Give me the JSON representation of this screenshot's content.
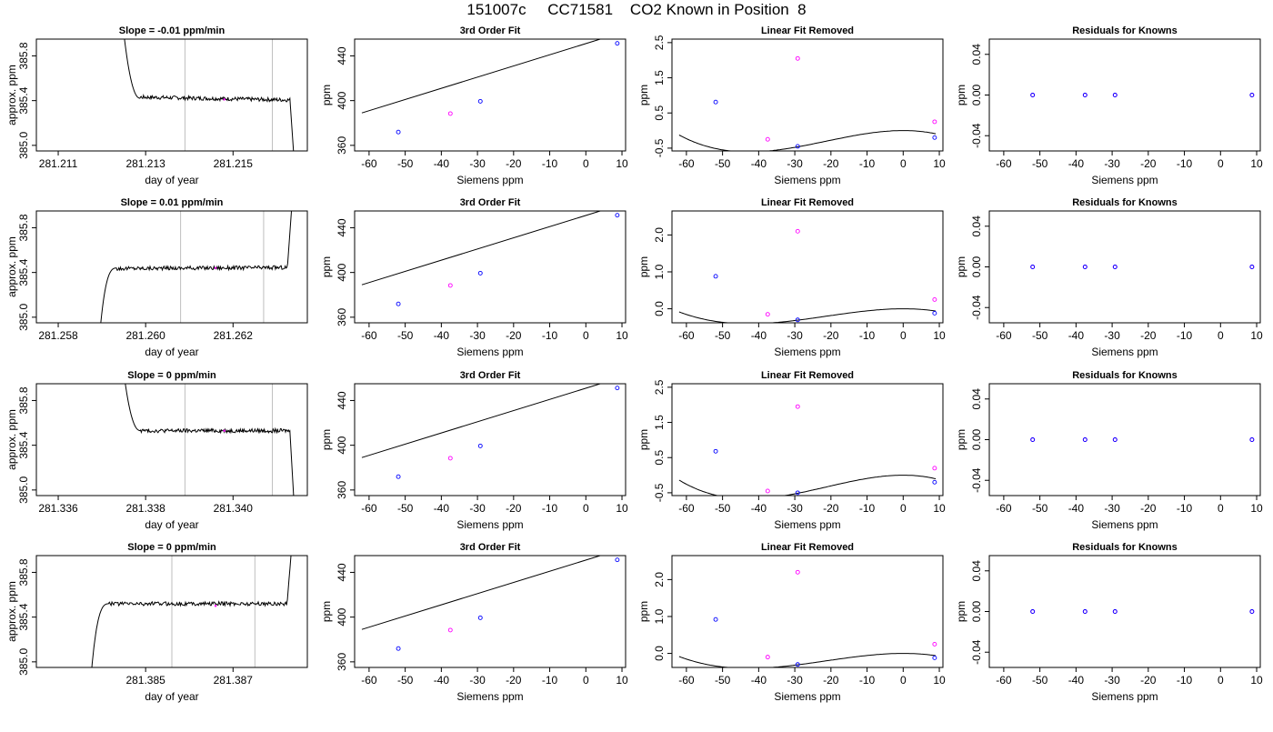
{
  "page": {
    "title": "151007c     CC71581    CO2 Known in Position  8"
  },
  "colors": {
    "axis": "#000000",
    "line": "#000000",
    "known_point": "#0000ff",
    "unknown_point": "#ff00ff",
    "vline": "#bebebe"
  },
  "chart_data": [
    {
      "type": "line",
      "row": 1,
      "col": 1,
      "title": "Slope =  -0.01  ppm/min",
      "xlabel": "day of year",
      "ylabel": "approx. ppm",
      "xlim": [
        281.2105,
        281.2167
      ],
      "ylim": [
        384.95,
        385.95
      ],
      "xticks": [
        281.211,
        281.213,
        281.215
      ],
      "xtick_labels": [
        "281.211",
        "281.213",
        "281.215"
      ],
      "yticks": [
        385.0,
        385.4,
        385.8
      ],
      "ytick_labels": [
        "385.0",
        "385.4",
        "385.8"
      ],
      "vlines": [
        281.2139,
        281.2159
      ],
      "trace": {
        "start": 281.2124,
        "end": 281.2164,
        "start_value": 386.4,
        "plateau": 385.42,
        "end_value": 384.85,
        "drift": -0.03,
        "profile": "fall-flat-drop"
      },
      "unknown_points": [
        {
          "x": 281.2148,
          "y": 385.41
        }
      ]
    },
    {
      "type": "scatter",
      "row": 1,
      "col": 2,
      "title": "3rd Order Fit",
      "xlabel": "Siemens ppm",
      "ylabel": "ppm",
      "xlim": [
        -64,
        11
      ],
      "ylim": [
        355,
        455
      ],
      "xticks": [
        -60,
        -50,
        -40,
        -30,
        -20,
        -10,
        0,
        10
      ],
      "xtick_labels": [
        "-60",
        "-50",
        "-40",
        "-30",
        "-20",
        "-10",
        "0",
        "10"
      ],
      "yticks": [
        360,
        400,
        440
      ],
      "ytick_labels": [
        "360",
        "400",
        "440"
      ],
      "curve": {
        "kind": "line",
        "slope": 1.0,
        "intercept": 451,
        "from": -62,
        "to": 9
      },
      "known_points": [
        {
          "x": -51.9,
          "y": 371.9
        },
        {
          "x": -29.2,
          "y": 399.4
        },
        {
          "x": 8.7,
          "y": 451.2
        }
      ],
      "unknown_points": [
        {
          "x": -37.5,
          "y": 388.4
        }
      ]
    },
    {
      "type": "scatter",
      "row": 1,
      "col": 3,
      "title": "Linear Fit Removed",
      "xlabel": "Siemens ppm",
      "ylabel": "ppm",
      "xlim": [
        -64,
        11
      ],
      "ylim": [
        -0.58,
        2.6
      ],
      "xticks": [
        -60,
        -50,
        -40,
        -30,
        -20,
        -10,
        0,
        10
      ],
      "xtick_labels": [
        "-60",
        "-50",
        "-40",
        "-30",
        "-20",
        "-10",
        "0",
        "10"
      ],
      "yticks": [
        -0.5,
        0.5,
        1.5,
        2.5
      ],
      "ytick_labels": [
        "-0.5",
        "0.5",
        "1.5",
        "2.5"
      ],
      "curve": {
        "kind": "cubic",
        "x_min": -28.5,
        "y_min": -0.45,
        "x_max": 0,
        "y_max": 0.0,
        "from": -62,
        "to": 9
      },
      "known_points": [
        {
          "x": -51.9,
          "y": 0.81
        },
        {
          "x": -29.2,
          "y": -0.45
        },
        {
          "x": 8.7,
          "y": -0.2
        }
      ],
      "unknown_points": [
        {
          "x": -37.5,
          "y": -0.25
        },
        {
          "x": -29.2,
          "y": 2.05
        },
        {
          "x": 8.7,
          "y": 0.25
        }
      ]
    },
    {
      "type": "scatter",
      "row": 1,
      "col": 4,
      "title": "Residuals for Knowns",
      "xlabel": "Siemens ppm",
      "ylabel": "ppm",
      "xlim": [
        -64,
        11
      ],
      "ylim": [
        -0.055,
        0.055
      ],
      "xticks": [
        -60,
        -50,
        -40,
        -30,
        -20,
        -10,
        0,
        10
      ],
      "xtick_labels": [
        "-60",
        "-50",
        "-40",
        "-30",
        "-20",
        "-10",
        "0",
        "10"
      ],
      "yticks": [
        -0.04,
        0.0,
        0.04
      ],
      "ytick_labels": [
        "-0.04",
        "0.00",
        "0.04"
      ],
      "known_points": [
        {
          "x": -52,
          "y": 0
        },
        {
          "x": -37.5,
          "y": 0
        },
        {
          "x": -29.2,
          "y": 0
        },
        {
          "x": 8.7,
          "y": 0
        }
      ],
      "unknown_points": [
        {
          "x": -52,
          "y": 0
        },
        {
          "x": -37.5,
          "y": 0
        },
        {
          "x": -29.2,
          "y": 0
        },
        {
          "x": 8.7,
          "y": 0
        }
      ]
    },
    {
      "type": "line",
      "row": 2,
      "col": 1,
      "title": "Slope =  0.01  ppm/min",
      "xlabel": "day of year",
      "ylabel": "approx. ppm",
      "xlim": [
        281.2575,
        281.2637
      ],
      "ylim": [
        384.95,
        385.95
      ],
      "xticks": [
        281.258,
        281.26,
        281.262
      ],
      "xtick_labels": [
        "281.258",
        "281.260",
        "281.262"
      ],
      "yticks": [
        385.0,
        385.4,
        385.8
      ],
      "ytick_labels": [
        "385.0",
        "385.4",
        "385.8"
      ],
      "vlines": [
        281.2608,
        281.2627
      ],
      "trace": {
        "start": 281.2589,
        "end": 281.2634,
        "start_value": 384.6,
        "plateau": 385.44,
        "end_value": 386.3,
        "drift": 0.01,
        "profile": "rise-flat-rise"
      },
      "unknown_points": [
        {
          "x": 281.2616,
          "y": 385.44
        }
      ]
    },
    {
      "type": "scatter",
      "row": 2,
      "col": 2,
      "title": "3rd Order Fit",
      "xlabel": "Siemens ppm",
      "ylabel": "ppm",
      "xlim": [
        -64,
        11
      ],
      "ylim": [
        355,
        455
      ],
      "xticks": [
        -60,
        -50,
        -40,
        -30,
        -20,
        -10,
        0,
        10
      ],
      "xtick_labels": [
        "-60",
        "-50",
        "-40",
        "-30",
        "-20",
        "-10",
        "0",
        "10"
      ],
      "yticks": [
        360,
        400,
        440
      ],
      "ytick_labels": [
        "360",
        "400",
        "440"
      ],
      "curve": {
        "kind": "line",
        "slope": 1.0,
        "intercept": 451,
        "from": -62,
        "to": 9
      },
      "known_points": [
        {
          "x": -51.9,
          "y": 371.9
        },
        {
          "x": -29.2,
          "y": 399.4
        },
        {
          "x": 8.7,
          "y": 451.2
        }
      ],
      "unknown_points": [
        {
          "x": -37.5,
          "y": 388.4
        }
      ]
    },
    {
      "type": "scatter",
      "row": 2,
      "col": 3,
      "title": "Linear Fit Removed",
      "xlabel": "Siemens ppm",
      "ylabel": "ppm",
      "xlim": [
        -64,
        11
      ],
      "ylim": [
        -0.38,
        2.65
      ],
      "xticks": [
        -60,
        -50,
        -40,
        -30,
        -20,
        -10,
        0,
        10
      ],
      "xtick_labels": [
        "-60",
        "-50",
        "-40",
        "-30",
        "-20",
        "-10",
        "0",
        "10"
      ],
      "yticks": [
        0.0,
        1.0,
        2.0
      ],
      "ytick_labels": [
        "0.0",
        "1.0",
        "2.0"
      ],
      "curve": {
        "kind": "cubic",
        "x_min": -28.5,
        "y_min": -0.3,
        "x_max": 0,
        "y_max": 0.0,
        "from": -62,
        "to": 9
      },
      "known_points": [
        {
          "x": -51.9,
          "y": 0.88
        },
        {
          "x": -29.2,
          "y": -0.3
        },
        {
          "x": 8.7,
          "y": -0.12
        }
      ],
      "unknown_points": [
        {
          "x": -37.5,
          "y": -0.15
        },
        {
          "x": -29.2,
          "y": 2.1
        },
        {
          "x": 8.7,
          "y": 0.25
        }
      ]
    },
    {
      "type": "scatter",
      "row": 2,
      "col": 4,
      "title": "Residuals for Knowns",
      "xlabel": "Siemens ppm",
      "ylabel": "ppm",
      "xlim": [
        -64,
        11
      ],
      "ylim": [
        -0.055,
        0.055
      ],
      "xticks": [
        -60,
        -50,
        -40,
        -30,
        -20,
        -10,
        0,
        10
      ],
      "xtick_labels": [
        "-60",
        "-50",
        "-40",
        "-30",
        "-20",
        "-10",
        "0",
        "10"
      ],
      "yticks": [
        -0.04,
        0.0,
        0.04
      ],
      "ytick_labels": [
        "-0.04",
        "0.00",
        "0.04"
      ],
      "known_points": [
        {
          "x": -52,
          "y": 0
        },
        {
          "x": -37.5,
          "y": 0
        },
        {
          "x": -29.2,
          "y": 0
        },
        {
          "x": 8.7,
          "y": 0
        }
      ],
      "unknown_points": [
        {
          "x": -52,
          "y": 0
        },
        {
          "x": -37.5,
          "y": 0
        },
        {
          "x": -29.2,
          "y": 0
        },
        {
          "x": 8.7,
          "y": 0
        }
      ]
    },
    {
      "type": "line",
      "row": 3,
      "col": 1,
      "title": "Slope =  0  ppm/min",
      "xlabel": "day of year",
      "ylabel": "approx. ppm",
      "xlim": [
        281.3355,
        281.3417
      ],
      "ylim": [
        384.95,
        385.95
      ],
      "xticks": [
        281.336,
        281.338,
        281.34
      ],
      "xtick_labels": [
        "281.336",
        "281.338",
        "281.340"
      ],
      "yticks": [
        385.0,
        385.4,
        385.8
      ],
      "ytick_labels": [
        "385.0",
        "385.4",
        "385.8"
      ],
      "vlines": [
        281.3389,
        281.3409
      ],
      "trace": {
        "start": 281.3374,
        "end": 281.3414,
        "start_value": 386.4,
        "plateau": 385.53,
        "end_value": 384.85,
        "drift": 0.0,
        "profile": "fall-flat-drop"
      },
      "unknown_points": [
        {
          "x": 281.3398,
          "y": 385.53
        }
      ]
    },
    {
      "type": "scatter",
      "row": 3,
      "col": 2,
      "title": "3rd Order Fit",
      "xlabel": "Siemens ppm",
      "ylabel": "ppm",
      "xlim": [
        -64,
        11
      ],
      "ylim": [
        355,
        455
      ],
      "xticks": [
        -60,
        -50,
        -40,
        -30,
        -20,
        -10,
        0,
        10
      ],
      "xtick_labels": [
        "-60",
        "-50",
        "-40",
        "-30",
        "-20",
        "-10",
        "0",
        "10"
      ],
      "yticks": [
        360,
        400,
        440
      ],
      "ytick_labels": [
        "360",
        "400",
        "440"
      ],
      "curve": {
        "kind": "line",
        "slope": 1.0,
        "intercept": 451,
        "from": -62,
        "to": 9
      },
      "known_points": [
        {
          "x": -51.9,
          "y": 371.9
        },
        {
          "x": -29.2,
          "y": 399.4
        },
        {
          "x": 8.7,
          "y": 451.2
        }
      ],
      "unknown_points": [
        {
          "x": -37.5,
          "y": 388.4
        }
      ]
    },
    {
      "type": "scatter",
      "row": 3,
      "col": 3,
      "title": "Linear Fit Removed",
      "xlabel": "Siemens ppm",
      "ylabel": "ppm",
      "xlim": [
        -64,
        11
      ],
      "ylim": [
        -0.58,
        2.6
      ],
      "xticks": [
        -60,
        -50,
        -40,
        -30,
        -20,
        -10,
        0,
        10
      ],
      "xtick_labels": [
        "-60",
        "-50",
        "-40",
        "-30",
        "-20",
        "-10",
        "0",
        "10"
      ],
      "yticks": [
        -0.5,
        0.5,
        1.5,
        2.5
      ],
      "ytick_labels": [
        "-0.5",
        "0.5",
        "1.5",
        "2.5"
      ],
      "curve": {
        "kind": "cubic",
        "x_min": -28.5,
        "y_min": -0.5,
        "x_max": 0,
        "y_max": 0.0,
        "from": -62,
        "to": 9
      },
      "known_points": [
        {
          "x": -51.9,
          "y": 0.68
        },
        {
          "x": -29.2,
          "y": -0.5
        },
        {
          "x": 8.7,
          "y": -0.2
        }
      ],
      "unknown_points": [
        {
          "x": -37.5,
          "y": -0.45
        },
        {
          "x": -29.2,
          "y": 1.95
        },
        {
          "x": 8.7,
          "y": 0.2
        }
      ]
    },
    {
      "type": "scatter",
      "row": 3,
      "col": 4,
      "title": "Residuals for Knowns",
      "xlabel": "Siemens ppm",
      "ylabel": "ppm",
      "xlim": [
        -64,
        11
      ],
      "ylim": [
        -0.055,
        0.055
      ],
      "xticks": [
        -60,
        -50,
        -40,
        -30,
        -20,
        -10,
        0,
        10
      ],
      "xtick_labels": [
        "-60",
        "-50",
        "-40",
        "-30",
        "-20",
        "-10",
        "0",
        "10"
      ],
      "yticks": [
        -0.04,
        0.0,
        0.04
      ],
      "ytick_labels": [
        "-0.04",
        "0.00",
        "0.04"
      ],
      "known_points": [
        {
          "x": -52,
          "y": 0
        },
        {
          "x": -37.5,
          "y": 0
        },
        {
          "x": -29.2,
          "y": 0
        },
        {
          "x": 8.7,
          "y": 0
        }
      ],
      "unknown_points": [
        {
          "x": -52,
          "y": 0
        },
        {
          "x": -37.5,
          "y": 0
        },
        {
          "x": -29.2,
          "y": 0
        },
        {
          "x": 8.7,
          "y": 0
        }
      ]
    },
    {
      "type": "line",
      "row": 4,
      "col": 1,
      "title": "Slope =  0  ppm/min",
      "xlabel": "day of year",
      "ylabel": "approx. ppm",
      "xlim": [
        281.3825,
        281.3887
      ],
      "ylim": [
        384.95,
        385.95
      ],
      "xticks": [
        281.385,
        281.387
      ],
      "xtick_labels": [
        "281.385",
        "281.387"
      ],
      "yticks": [
        385.0,
        385.4,
        385.8
      ],
      "ytick_labels": [
        "385.0",
        "385.4",
        "385.8"
      ],
      "vlines": [
        281.3856,
        281.3875
      ],
      "trace": {
        "start": 281.3837,
        "end": 281.3884,
        "start_value": 384.6,
        "plateau": 385.52,
        "end_value": 386.3,
        "drift": 0.0,
        "profile": "rise-flat-rise"
      },
      "unknown_points": [
        {
          "x": 281.3866,
          "y": 385.5
        }
      ]
    },
    {
      "type": "scatter",
      "row": 4,
      "col": 2,
      "title": "3rd Order Fit",
      "xlabel": "Siemens ppm",
      "ylabel": "ppm",
      "xlim": [
        -64,
        11
      ],
      "ylim": [
        355,
        455
      ],
      "xticks": [
        -60,
        -50,
        -40,
        -30,
        -20,
        -10,
        0,
        10
      ],
      "xtick_labels": [
        "-60",
        "-50",
        "-40",
        "-30",
        "-20",
        "-10",
        "0",
        "10"
      ],
      "yticks": [
        360,
        400,
        440
      ],
      "ytick_labels": [
        "360",
        "400",
        "440"
      ],
      "curve": {
        "kind": "line",
        "slope": 1.0,
        "intercept": 451,
        "from": -62,
        "to": 9
      },
      "known_points": [
        {
          "x": -51.9,
          "y": 371.9
        },
        {
          "x": -29.2,
          "y": 399.4
        },
        {
          "x": 8.7,
          "y": 451.2
        }
      ],
      "unknown_points": [
        {
          "x": -37.5,
          "y": 388.4
        }
      ]
    },
    {
      "type": "scatter",
      "row": 4,
      "col": 3,
      "title": "Linear Fit Removed",
      "xlabel": "Siemens ppm",
      "ylabel": "ppm",
      "xlim": [
        -64,
        11
      ],
      "ylim": [
        -0.38,
        2.65
      ],
      "xticks": [
        -60,
        -50,
        -40,
        -30,
        -20,
        -10,
        0,
        10
      ],
      "xtick_labels": [
        "-60",
        "-50",
        "-40",
        "-30",
        "-20",
        "-10",
        "0",
        "10"
      ],
      "yticks": [
        0.0,
        1.0,
        2.0
      ],
      "ytick_labels": [
        "0.0",
        "1.0",
        "2.0"
      ],
      "curve": {
        "kind": "cubic",
        "x_min": -28.5,
        "y_min": -0.3,
        "x_max": 0,
        "y_max": 0.0,
        "from": -62,
        "to": 9
      },
      "known_points": [
        {
          "x": -51.9,
          "y": 0.92
        },
        {
          "x": -29.2,
          "y": -0.3
        },
        {
          "x": 8.7,
          "y": -0.12
        }
      ],
      "unknown_points": [
        {
          "x": -37.5,
          "y": -0.1
        },
        {
          "x": -29.2,
          "y": 2.2
        },
        {
          "x": 8.7,
          "y": 0.25
        }
      ]
    },
    {
      "type": "scatter",
      "row": 4,
      "col": 4,
      "title": "Residuals for Knowns",
      "xlabel": "Siemens ppm",
      "ylabel": "ppm",
      "xlim": [
        -64,
        11
      ],
      "ylim": [
        -0.055,
        0.055
      ],
      "xticks": [
        -60,
        -50,
        -40,
        -30,
        -20,
        -10,
        0,
        10
      ],
      "xtick_labels": [
        "-60",
        "-50",
        "-40",
        "-30",
        "-20",
        "-10",
        "0",
        "10"
      ],
      "yticks": [
        -0.04,
        0.0,
        0.04
      ],
      "ytick_labels": [
        "-0.04",
        "0.00",
        "0.04"
      ],
      "known_points": [
        {
          "x": -52,
          "y": 0
        },
        {
          "x": -37.5,
          "y": 0
        },
        {
          "x": -29.2,
          "y": 0
        },
        {
          "x": 8.7,
          "y": 0
        }
      ],
      "unknown_points": [
        {
          "x": -52,
          "y": 0
        },
        {
          "x": -37.5,
          "y": 0
        },
        {
          "x": -29.2,
          "y": 0
        },
        {
          "x": 8.7,
          "y": 0
        }
      ]
    }
  ]
}
